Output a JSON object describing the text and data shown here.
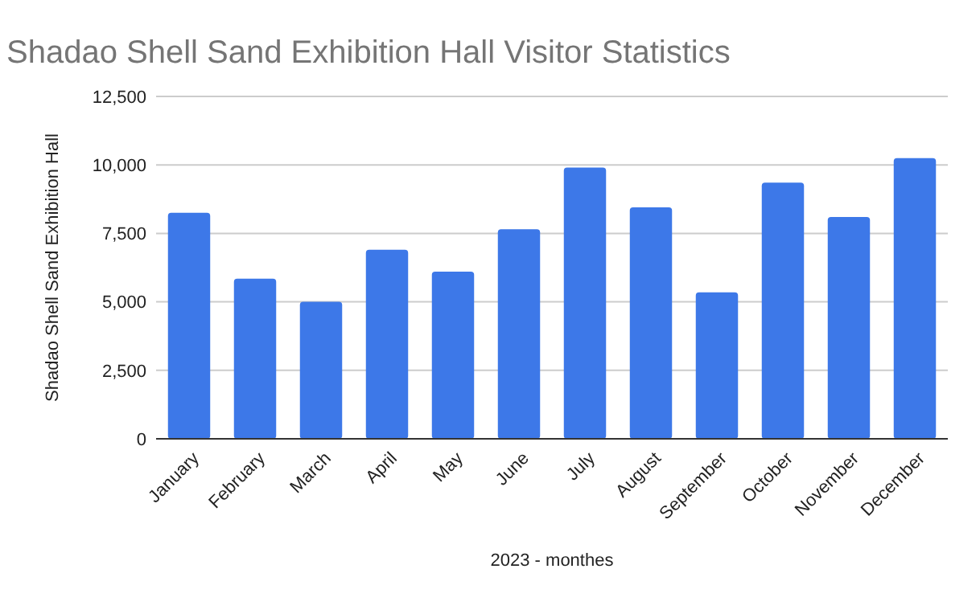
{
  "chart_data": {
    "type": "bar",
    "title": "Shadao Shell Sand Exhibition Hall Visitor Statistics",
    "xlabel": "2023 - monthes",
    "ylabel": "Shadao Shell Sand Exhibition Hall",
    "categories": [
      "January",
      "February",
      "March",
      "April",
      "May",
      "June",
      "July",
      "August",
      "September",
      "October",
      "November",
      "December"
    ],
    "values": [
      8250,
      5850,
      5000,
      6900,
      6100,
      7650,
      9900,
      8450,
      5350,
      9350,
      8100,
      10250
    ],
    "color": "#3d78e8",
    "ylim": [
      0,
      12500
    ],
    "yticks": [
      {
        "value": 0,
        "label": "0"
      },
      {
        "value": 2500,
        "label": "2,500"
      },
      {
        "value": 5000,
        "label": "5,000"
      },
      {
        "value": 7500,
        "label": "7,500"
      },
      {
        "value": 10000,
        "label": "10,000"
      },
      {
        "value": 12500,
        "label": "12,500"
      }
    ],
    "grid": "y"
  }
}
